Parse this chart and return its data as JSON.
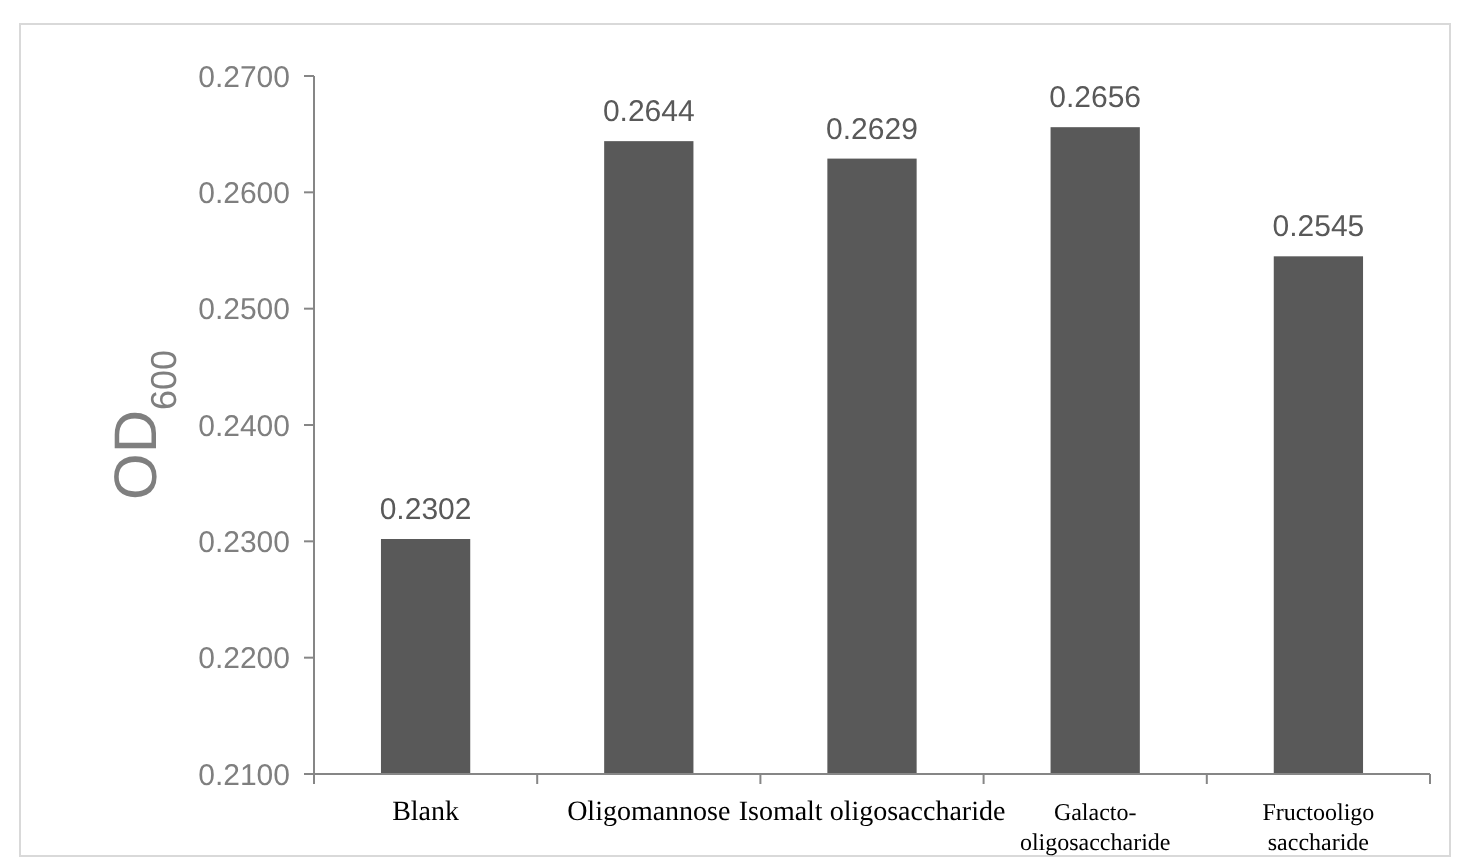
{
  "chart_data": {
    "type": "bar",
    "ylabel": "OD$_{600}$",
    "categories": [
      "Blank",
      "Oligomannose",
      "Isomalt oligosaccharide",
      "Galacto-\noligosaccharide",
      "Fructooligo\nsaccharide"
    ],
    "values": [
      0.2302,
      0.2644,
      0.2629,
      0.2656,
      0.2545
    ],
    "color": "#595959",
    "ylim": [
      0.21,
      0.27
    ],
    "yticks": [
      {
        "value": 0.21,
        "label": "0.2100"
      },
      {
        "value": 0.22,
        "label": "0.2200"
      },
      {
        "value": 0.23,
        "label": "0.2300"
      },
      {
        "value": 0.24,
        "label": "0.2400"
      },
      {
        "value": 0.25,
        "label": "0.2500"
      },
      {
        "value": 0.26,
        "label": "0.2600"
      },
      {
        "value": 0.27,
        "label": "0.2700"
      }
    ],
    "data_labels": true,
    "grid": false
  }
}
